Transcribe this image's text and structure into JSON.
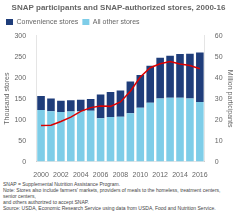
{
  "chart_data": {
    "type": "bar",
    "title": "SNAP participants and SNAP-authorized stores, 2000-16",
    "ylabel": "Thousand stores",
    "y2label": "Million participants",
    "categories": [
      "2000",
      null,
      "2002",
      null,
      "2004",
      null,
      "2006",
      null,
      "2008",
      null,
      "2010",
      null,
      "2012",
      null,
      "2014",
      null,
      "2016"
    ],
    "series": [
      {
        "name": "All other stores",
        "color": "#7ecde8",
        "values": [
          123,
          120,
          118,
          119,
          120,
          121,
          103,
          106,
          107,
          115,
          128,
          140,
          150,
          152,
          152,
          150,
          142
        ]
      },
      {
        "name": "Convenience stores",
        "color": "#1f3d7a",
        "values": [
          33,
          30,
          27,
          27,
          27,
          28,
          57,
          60,
          62,
          76,
          78,
          88,
          97,
          100,
          104,
          107,
          118
        ]
      },
      {
        "type": "line",
        "axis": "y2",
        "color": "#dd0000",
        "values": [
          17.2,
          17.3,
          19.1,
          21.2,
          23.9,
          25.7,
          26.5,
          26.3,
          28.4,
          33.5,
          40.3,
          44.7,
          46.6,
          47.6,
          46.5,
          45.8,
          44.2
        ]
      }
    ],
    "stacked": true,
    "ylim": [
      0,
      300
    ],
    "yticks": [
      0,
      50,
      100,
      150,
      200,
      250,
      300
    ],
    "y2lim": [
      0,
      60
    ],
    "y2ticks": [
      0,
      10,
      20,
      30,
      40,
      50,
      60
    ],
    "grid": false,
    "legend": "upper left",
    "annotations": [
      "SNAP = Supplemental Nutrition Assistance Program.",
      "Note: Stores also include farmers' markets, providers of meals to the homeless, treatment centers, senior centers,",
      "and others authorized to accept SNAP.",
      "Source: USDA, Economic Research Service using data from USDA, Food and Nutrition Service."
    ]
  }
}
